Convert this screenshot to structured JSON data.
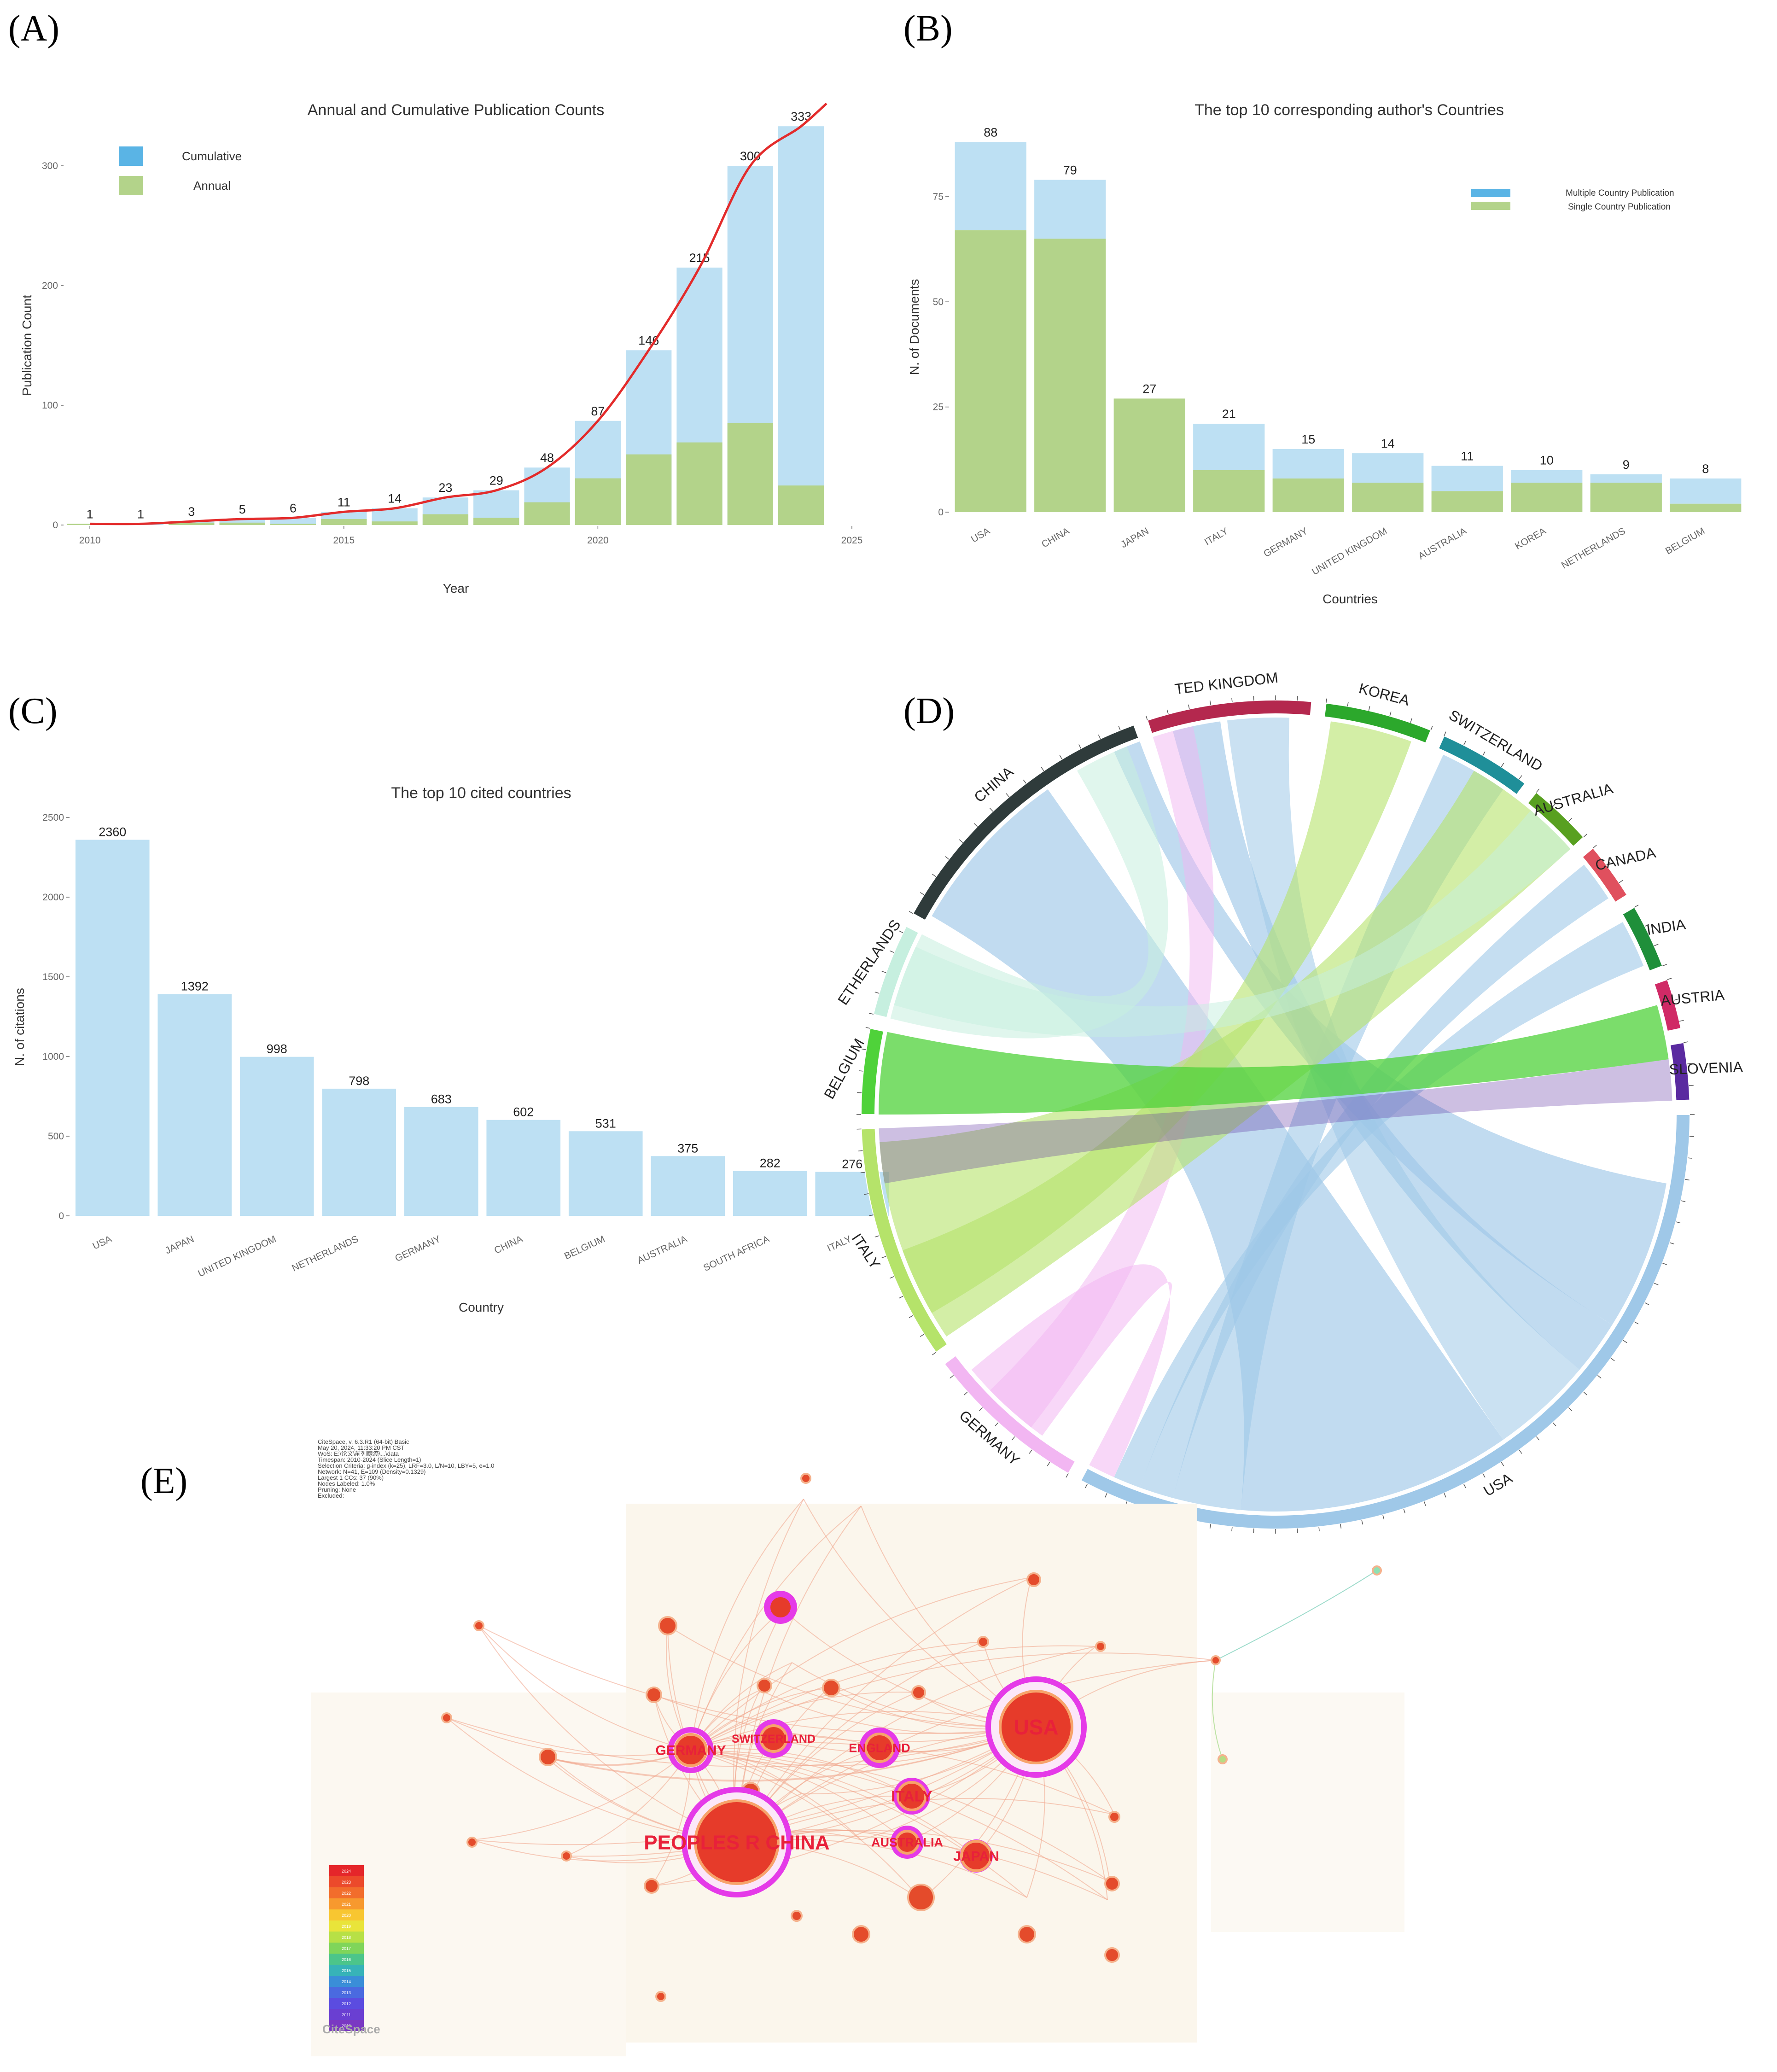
{
  "panels": {
    "A": "(A)",
    "B": "(B)",
    "C": "(C)",
    "D": "(D)",
    "E": "(E)"
  },
  "colors": {
    "blue": "#bde0f3",
    "blue_legend": "#5ab4e5",
    "green": "#b3d38a",
    "red": "#e32b2b",
    "magenta": "#e53ae8"
  },
  "chart_data": [
    {
      "id": "A",
      "type": "bar",
      "title": "Annual and Cumulative Publication Counts",
      "xlabel": "Year",
      "ylabel": "Publication Count",
      "x": [
        2010,
        2011,
        2012,
        2013,
        2014,
        2015,
        2016,
        2017,
        2018,
        2019,
        2020,
        2021,
        2022,
        2023,
        2024
      ],
      "xticks": [
        2010,
        2015,
        2020,
        2025
      ],
      "yticks": [
        0,
        100,
        200,
        300
      ],
      "xlim": [
        2009.5,
        2025
      ],
      "ylim": [
        0,
        350
      ],
      "series": [
        {
          "name": "Cumulative",
          "values": [
            1,
            1,
            3,
            5,
            6,
            11,
            14,
            23,
            29,
            48,
            87,
            146,
            215,
            300,
            333
          ]
        },
        {
          "name": "Annual",
          "values": [
            1,
            0,
            2,
            2,
            1,
            5,
            3,
            9,
            6,
            19,
            39,
            59,
            69,
            85,
            33
          ]
        }
      ],
      "data_labels": [
        "1",
        "1",
        "3",
        "5",
        "6",
        "11",
        "14",
        "23",
        "29",
        "48",
        "87",
        "146",
        "215",
        "300",
        "333"
      ],
      "trend_line": "cumulative",
      "legend": "top-left"
    },
    {
      "id": "B",
      "type": "bar",
      "stacked": true,
      "title": "The top 10 corresponding author's Countries",
      "xlabel": "Countries",
      "ylabel": "N. of Documents",
      "categories": [
        "USA",
        "CHINA",
        "JAPAN",
        "ITALY",
        "GERMANY",
        "UNITED KINGDOM",
        "AUSTRALIA",
        "KOREA",
        "NETHERLANDS",
        "BELGIUM"
      ],
      "yticks": [
        0,
        25,
        50,
        75
      ],
      "ylim": [
        0,
        90
      ],
      "series": [
        {
          "name": "Single Country Publication",
          "values": [
            67,
            65,
            27,
            10,
            8,
            7,
            5,
            7,
            7,
            2
          ]
        },
        {
          "name": "Multiple Country Publication",
          "values": [
            21,
            14,
            0,
            11,
            7,
            7,
            6,
            3,
            2,
            6
          ]
        }
      ],
      "totals": [
        "88",
        "79",
        "27",
        "21",
        "15",
        "14",
        "11",
        "10",
        "9",
        "8"
      ],
      "legend": "top-right"
    },
    {
      "id": "C",
      "type": "bar",
      "title": "The top 10 cited countries",
      "xlabel": "Country",
      "ylabel": "N. of citations",
      "categories": [
        "USA",
        "JAPAN",
        "UNITED KINGDOM",
        "NETHERLANDS",
        "GERMANY",
        "CHINA",
        "BELGIUM",
        "AUSTRALIA",
        "SOUTH AFRICA",
        "ITALY"
      ],
      "values": [
        2360,
        1392,
        998,
        798,
        683,
        602,
        531,
        375,
        282,
        276
      ],
      "data_labels": [
        "2360",
        "1392",
        "998",
        "798",
        "683",
        "602",
        "531",
        "375",
        "282",
        "276"
      ],
      "yticks": [
        0,
        500,
        1000,
        1500,
        2000,
        2500
      ],
      "ylim": [
        0,
        2500
      ]
    },
    {
      "id": "D",
      "type": "chord",
      "sectors": [
        {
          "name": "USA",
          "color": "#9fc8e8"
        },
        {
          "name": "GERMANY",
          "color": "#f2b6f2"
        },
        {
          "name": "ITALY",
          "color": "#b5e36a"
        },
        {
          "name": "BELGIUM",
          "color": "#4fd23a"
        },
        {
          "name": "ETHERLANDS",
          "color": "#c6efdf"
        },
        {
          "name": "CHINA",
          "color": "#2f3b3b"
        },
        {
          "name": "TED KINGDOM",
          "color": "#b4284e"
        },
        {
          "name": "KOREA",
          "color": "#2ca82c"
        },
        {
          "name": "SWITZERLAND",
          "color": "#1f8f99"
        },
        {
          "name": "AUSTRALIA",
          "color": "#58a020"
        },
        {
          "name": "CANADA",
          "color": "#e0505e"
        },
        {
          "name": "INDIA",
          "color": "#1f8f3a"
        },
        {
          "name": "AUSTRIA",
          "color": "#d02a66"
        },
        {
          "name": "SLOVENIA",
          "color": "#5a2aa0"
        }
      ]
    },
    {
      "id": "E",
      "type": "network",
      "nodes": [
        {
          "label": "USA",
          "size": 3
        },
        {
          "label": "PEOPLES R CHINA",
          "size": 3
        },
        {
          "label": "GERMANY",
          "size": 2
        },
        {
          "label": "SWITZERLAND",
          "size": 2
        },
        {
          "label": "ENGLAND",
          "size": 2
        },
        {
          "label": "ITALY",
          "size": 2
        },
        {
          "label": "AUSTRALIA",
          "size": 2
        },
        {
          "label": "JAPAN",
          "size": 2
        }
      ],
      "legend_years": [
        "2024",
        "2023",
        "2022",
        "2021",
        "2020",
        "2019",
        "2018",
        "2017",
        "2016",
        "2015",
        "2014",
        "2013",
        "2012",
        "2011",
        "2010"
      ],
      "info_lines": [
        "CiteSpace, v. 6.3.R1 (64-bit) Basic",
        "May 20, 2024, 11:33:20 PM CST",
        "WoS: E:\\论文\\前列腺癌\\...\\data",
        "Timespan: 2010-2024 (Slice Length=1)",
        "Selection Criteria: g-index (k=25), LRF=3.0, L/N=10, LBY=5, e=1.0",
        "Network: N=41, E=109 (Density=0.1329)",
        "Largest 1 CCs: 37 (90%)",
        "Nodes Labeled: 1.0%",
        "Pruning: None",
        "Excluded:"
      ],
      "watermark": "CiteSpace"
    }
  ]
}
